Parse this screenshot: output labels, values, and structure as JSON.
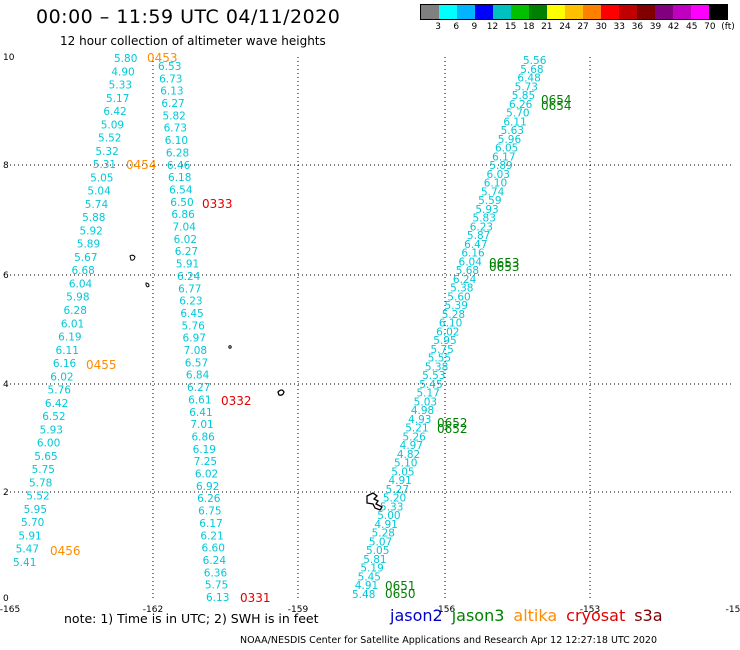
{
  "header": {
    "title": "00:00 – 11:59 UTC 04/11/2020",
    "subtitle": "12 hour collection of altimeter wave heights"
  },
  "colorbar": {
    "colors": [
      "#808080",
      "#00ffff",
      "#00b4ff",
      "#0000ff",
      "#00c0c0",
      "#00c000",
      "#008000",
      "#ffff00",
      "#ffc000",
      "#ff8000",
      "#ff0000",
      "#c00000",
      "#800000",
      "#800080",
      "#c000c0",
      "#ff00ff",
      "#000000"
    ],
    "labels": [
      "3",
      "6",
      "9",
      "12",
      "15",
      "18",
      "21",
      "24",
      "27",
      "30",
      "33",
      "36",
      "39",
      "42",
      "45",
      "70",
      "(ft)"
    ]
  },
  "axes": {
    "x_ticks": [
      "-165",
      "-162",
      "-159",
      "-156",
      "-153",
      "-15"
    ],
    "y_ticks": [
      "10",
      "8",
      "6",
      "4",
      "2",
      "0"
    ]
  },
  "track_colors": {
    "altika": "#ff8c00",
    "cryosat": "#e00000",
    "jason3": "#008000",
    "track": "#00c8d8"
  },
  "track_a_values": [
    "5.80",
    "4.90",
    "5.33",
    "5.17",
    "6.42",
    "5.09",
    "5.52",
    "5.32",
    "5.31",
    "5.05",
    "5.04",
    "5.74",
    "5.88",
    "5.92",
    "5.89",
    "5.67",
    "6.68",
    "6.04",
    "5.98",
    "6.28",
    "6.01",
    "6.19",
    "6.11",
    "6.16",
    "6.02",
    "5.76",
    "6.42",
    "6.52",
    "5.93",
    "6.00",
    "5.65",
    "5.75",
    "5.78",
    "5.52",
    "5.95",
    "5.70",
    "5.91",
    "5.47",
    "5.41"
  ],
  "track_b_values": [
    "6.53",
    "6.73",
    "6.13",
    "6.27",
    "5.82",
    "6.73",
    "6.10",
    "6.28",
    "6.46",
    "6.18",
    "6.54",
    "6.50",
    "6.86",
    "7.04",
    "6.02",
    "6.27",
    "5.91",
    "6.24",
    "6.77",
    "6.23",
    "6.45",
    "5.76",
    "6.97",
    "7.08",
    "6.57",
    "6.84",
    "6.27",
    "6.61",
    "6.41",
    "7.01",
    "6.86",
    "6.19",
    "7.25",
    "6.02",
    "6.92",
    "6.26",
    "6.75",
    "6.17",
    "6.21",
    "6.60",
    "6.24",
    "6.36",
    "5.75",
    "6.13"
  ],
  "track_c_values": [
    "5.56",
    "5.68",
    "6.48",
    "5.73",
    "5.85",
    "6.26",
    "5.70",
    "6.11",
    "5.63",
    "5.96",
    "6.05",
    "6.17",
    "5.89",
    "6.03",
    "6.10",
    "5.74",
    "5.59",
    "5.93",
    "5.83",
    "6.23",
    "5.87",
    "6.47",
    "6.16",
    "6.04",
    "5.68",
    "6.24",
    "5.38",
    "5.60",
    "5.39",
    "5.28",
    "6.10",
    "6.02",
    "5.95",
    "5.75",
    "5.55",
    "5.38",
    "5.53",
    "5.45",
    "5.17",
    "5.03",
    "4.98",
    "4.93",
    "5.21",
    "5.26",
    "4.97",
    "4.82",
    "5.10",
    "5.05",
    "4.91",
    "5.27",
    "5.20",
    "5.33",
    "5.00",
    "4.91",
    "5.28",
    "5.07",
    "5.05",
    "5.81",
    "5.19",
    "5.45",
    "4.91",
    "5.48"
  ],
  "time_labels": [
    {
      "text": "0453",
      "sat": "altika"
    },
    {
      "text": "0454",
      "sat": "altika"
    },
    {
      "text": "0455",
      "sat": "altika"
    },
    {
      "text": "0456",
      "sat": "altika"
    },
    {
      "text": "0333",
      "sat": "cryosat"
    },
    {
      "text": "0332",
      "sat": "cryosat"
    },
    {
      "text": "0331",
      "sat": "cryosat"
    },
    {
      "text": "0654",
      "sat": "jason3"
    },
    {
      "text": "0653",
      "sat": "jason3"
    },
    {
      "text": "0652",
      "sat": "jason3"
    },
    {
      "text": "0651",
      "sat": "jason3"
    },
    {
      "text": "0650",
      "sat": "jason3"
    }
  ],
  "note": "note:  1) Time is in UTC;  2) SWH is in feet",
  "legend": [
    {
      "name": "jason2",
      "color": "#0000cc"
    },
    {
      "name": "jason3",
      "color": "#008000"
    },
    {
      "name": "altika",
      "color": "#ff8c00"
    },
    {
      "name": "cryosat",
      "color": "#e00000"
    },
    {
      "name": "s3a",
      "color": "#800000"
    }
  ],
  "footer": "NOAA/NESDIS Center for Satellite Applications and Research     Apr 12 12:27:18 UTC 2020"
}
